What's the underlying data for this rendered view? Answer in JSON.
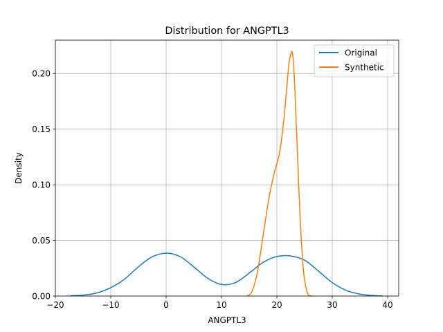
{
  "chart_data": {
    "type": "line",
    "title": "Distribution for ANGPTL3",
    "xlabel": "ANGPTL3",
    "ylabel": "Density",
    "xlim": [
      -20,
      42
    ],
    "ylim": [
      0,
      0.23
    ],
    "xticks": [
      -20,
      -10,
      0,
      10,
      20,
      30,
      40
    ],
    "xtick_labels": [
      "−20",
      "−10",
      "0",
      "10",
      "20",
      "30",
      "40"
    ],
    "yticks": [
      0,
      0.05,
      0.1,
      0.15,
      0.2
    ],
    "ytick_labels": [
      "0.00",
      "0.05",
      "0.10",
      "0.15",
      "0.20"
    ],
    "grid": true,
    "legend_position": "top-right",
    "series": [
      {
        "name": "Original",
        "color": "#1f77b4",
        "x": [
          -17.3,
          -15,
          -12.5,
          -10,
          -7.5,
          -5,
          -2.5,
          0,
          2.5,
          5,
          7.5,
          10,
          12.5,
          15,
          17.5,
          20,
          22.5,
          25,
          27.5,
          30,
          32.5,
          35,
          37.5,
          39.1
        ],
        "y": [
          0.0002,
          0.0008,
          0.0028,
          0.0075,
          0.0152,
          0.0263,
          0.0353,
          0.0385,
          0.0355,
          0.0262,
          0.016,
          0.0104,
          0.012,
          0.0206,
          0.0302,
          0.0355,
          0.036,
          0.0322,
          0.0225,
          0.0121,
          0.0051,
          0.0017,
          0.0004,
          0.0001
        ]
      },
      {
        "name": "Synthetic",
        "color": "#ff7f0e",
        "x": [
          14.6,
          15.5,
          16.5,
          17.5,
          18.5,
          19.5,
          20.5,
          21.2,
          21.8,
          22.2,
          22.6,
          22.8,
          23.0,
          23.3,
          23.7,
          24.2,
          24.8,
          25.5,
          26.3
        ],
        "y": [
          0.0,
          0.004,
          0.022,
          0.054,
          0.086,
          0.11,
          0.129,
          0.156,
          0.188,
          0.21,
          0.219,
          0.2185,
          0.209,
          0.18,
          0.13,
          0.07,
          0.023,
          0.003,
          0.0
        ]
      }
    ]
  }
}
